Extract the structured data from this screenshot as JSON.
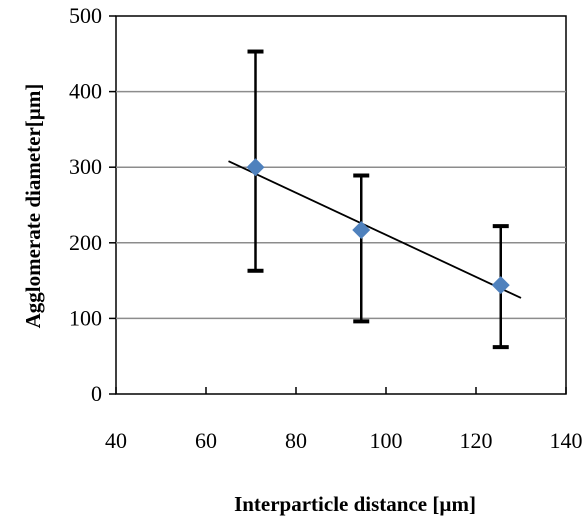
{
  "chart_data": {
    "type": "scatter",
    "title": "",
    "xlabel": "Interparticle distance [µm]",
    "ylabel": "Agglomerate diameter[µm]",
    "xlim": [
      40,
      140
    ],
    "ylim": [
      0,
      500
    ],
    "x_ticks": [
      "40",
      "60",
      "80",
      "100",
      "120",
      "140"
    ],
    "y_ticks": [
      "0",
      "100",
      "200",
      "300",
      "400",
      "500"
    ],
    "grid": "horizontal major gridlines",
    "legend": "none",
    "series": [
      {
        "marker": "diamond",
        "color": "#4f81bd",
        "x": [
          71,
          94.5,
          125.5
        ],
        "y": [
          300,
          217,
          144
        ],
        "error_low": [
          163,
          96,
          62
        ],
        "error_high": [
          453,
          289,
          222
        ]
      }
    ],
    "trendline": {
      "type": "linear",
      "color": "#000000",
      "x": [
        65,
        130
      ],
      "y": [
        308,
        127
      ]
    }
  }
}
